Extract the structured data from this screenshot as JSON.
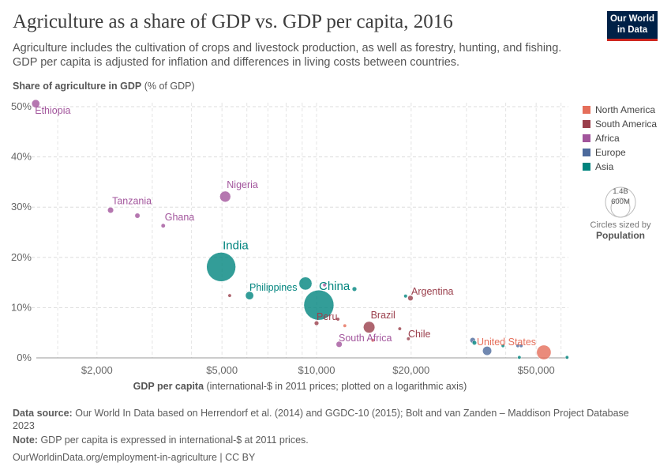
{
  "header": {
    "title": "Agriculture as a share of GDP vs. GDP per capita, 2016",
    "subtitle": "Agriculture includes the cultivation of crops and livestock production, as well as forestry, hunting, and fishing. GDP per capita is adjusted for inflation and differences in living costs between countries.",
    "logo": "Our World in Data"
  },
  "chart_data": {
    "type": "scatter",
    "title": "Agriculture as a share of GDP vs. GDP per capita, 2016",
    "ylabel_bold": "Share of agriculture in GDP",
    "ylabel_unit": "(% of GDP)",
    "xlabel_bold": "GDP per capita",
    "xlabel_unit": "(international-$ in 2011 prices; plotted on a logarithmic axis)",
    "x_scale": "log",
    "xlim": [
      1240,
      63000
    ],
    "ylim": [
      0,
      50
    ],
    "x_ticks": [
      {
        "v": 2000,
        "label": "$2,000"
      },
      {
        "v": 5000,
        "label": "$5,000"
      },
      {
        "v": 10000,
        "label": "$10,000"
      },
      {
        "v": 20000,
        "label": "$20,000"
      },
      {
        "v": 50000,
        "label": "$50,000"
      }
    ],
    "y_ticks": [
      {
        "v": 0,
        "label": "0%"
      },
      {
        "v": 10,
        "label": "10%"
      },
      {
        "v": 20,
        "label": "20%"
      },
      {
        "v": 30,
        "label": "30%"
      },
      {
        "v": 40,
        "label": "40%"
      },
      {
        "v": 50,
        "label": "50%"
      }
    ],
    "grid": true,
    "legend": [
      {
        "name": "North America",
        "color": "#e56e5a"
      },
      {
        "name": "South America",
        "color": "#9a3e4b"
      },
      {
        "name": "Africa",
        "color": "#a2559c"
      },
      {
        "name": "Europe",
        "color": "#4c6a9c"
      },
      {
        "name": "Asia",
        "color": "#00847e"
      }
    ],
    "legend_position": "right",
    "size_legend": {
      "big": "1.4B",
      "small": "600M",
      "caption": "Circles sized by",
      "variable": "Population"
    },
    "points": [
      {
        "label": "Ethiopia",
        "region": "Africa",
        "x": 1277,
        "y": 50.6,
        "pop": 100000000,
        "lp": "below"
      },
      {
        "label": "Tanzania",
        "region": "Africa",
        "x": 2210,
        "y": 29.4,
        "pop": 55000000
      },
      {
        "label": "",
        "region": "Africa",
        "x": 2690,
        "y": 28.3,
        "pop": 40000000
      },
      {
        "label": "Ghana",
        "region": "Africa",
        "x": 3250,
        "y": 26.3,
        "pop": 28000000
      },
      {
        "label": "Nigeria",
        "region": "Africa",
        "x": 5120,
        "y": 32.1,
        "pop": 185000000
      },
      {
        "label": "India",
        "region": "Asia",
        "x": 4970,
        "y": 18.1,
        "pop": 1320000000,
        "big": true
      },
      {
        "label": "",
        "region": "South America",
        "x": 5290,
        "y": 12.4,
        "pop": 10000000
      },
      {
        "label": "Philippines",
        "region": "Asia",
        "x": 6120,
        "y": 12.4,
        "pop": 103000000,
        "lp": "left"
      },
      {
        "label": "",
        "region": "Asia",
        "x": 9220,
        "y": 14.8,
        "pop": 260000000
      },
      {
        "label": "China",
        "region": "Asia",
        "x": 10170,
        "y": 10.5,
        "pop": 1400000000,
        "big": true,
        "lp": "china"
      },
      {
        "label": "",
        "region": "Africa",
        "x": 10600,
        "y": 14.5,
        "pop": 3000000
      },
      {
        "label": "",
        "region": "Asia",
        "x": 13200,
        "y": 13.7,
        "pop": 32000000
      },
      {
        "label": "",
        "region": "Asia",
        "x": 19200,
        "y": 12.3,
        "pop": 20000000
      },
      {
        "label": "Argentina",
        "region": "South America",
        "x": 19900,
        "y": 11.9,
        "pop": 44000000
      },
      {
        "label": "Peru",
        "region": "South America",
        "x": 10000,
        "y": 6.9,
        "pop": 31000000,
        "lp": "peru"
      },
      {
        "label": "",
        "region": "South America",
        "x": 11700,
        "y": 7.7,
        "pop": 16000000
      },
      {
        "label": "",
        "region": "North America",
        "x": 12300,
        "y": 6.4,
        "pop": 9000000
      },
      {
        "label": "Brazil",
        "region": "South America",
        "x": 14700,
        "y": 6.1,
        "pop": 206000000
      },
      {
        "label": "",
        "region": "South America",
        "x": 18400,
        "y": 5.8,
        "pop": 18000000
      },
      {
        "label": "South Africa",
        "region": "Africa",
        "x": 11800,
        "y": 2.7,
        "pop": 56000000,
        "lp": "sa"
      },
      {
        "label": "",
        "region": "North America",
        "x": 15100,
        "y": 3.5,
        "pop": 4000000
      },
      {
        "label": "Chile",
        "region": "South America",
        "x": 19600,
        "y": 3.8,
        "pop": 18000000
      },
      {
        "label": "",
        "region": "Europe",
        "x": 31400,
        "y": 3.5,
        "pop": 46000000
      },
      {
        "label": "",
        "region": "Asia",
        "x": 31800,
        "y": 3.0,
        "pop": 30000000
      },
      {
        "label": "",
        "region": "Europe",
        "x": 34900,
        "y": 1.4,
        "pop": 127000000
      },
      {
        "label": "",
        "region": "Asia",
        "x": 39200,
        "y": 2.4,
        "pop": 5000000
      },
      {
        "label": "",
        "region": "Europe",
        "x": 43700,
        "y": 2.4,
        "pop": 8000000
      },
      {
        "label": "",
        "region": "Europe",
        "x": 44800,
        "y": 2.4,
        "pop": 8000000
      },
      {
        "label": "United States",
        "region": "North America",
        "x": 52900,
        "y": 1.1,
        "pop": 323000000,
        "lp": "us"
      },
      {
        "label": "",
        "region": "Asia",
        "x": 44200,
        "y": 0.1,
        "pop": 2000000
      },
      {
        "label": "",
        "region": "Asia",
        "x": 62700,
        "y": 0.1,
        "pop": 2000000
      }
    ]
  },
  "footer": {
    "source_label": "Data source:",
    "source": "Our World In Data based on Herrendorf et al. (2014) and GGDC-10 (2015); Bolt and van Zanden – Maddison Project Database 2023",
    "note_label": "Note:",
    "note": "GDP per capita is expressed in international-$ at 2011 prices.",
    "url": "OurWorldinData.org/employment-in-agriculture | CC BY"
  }
}
